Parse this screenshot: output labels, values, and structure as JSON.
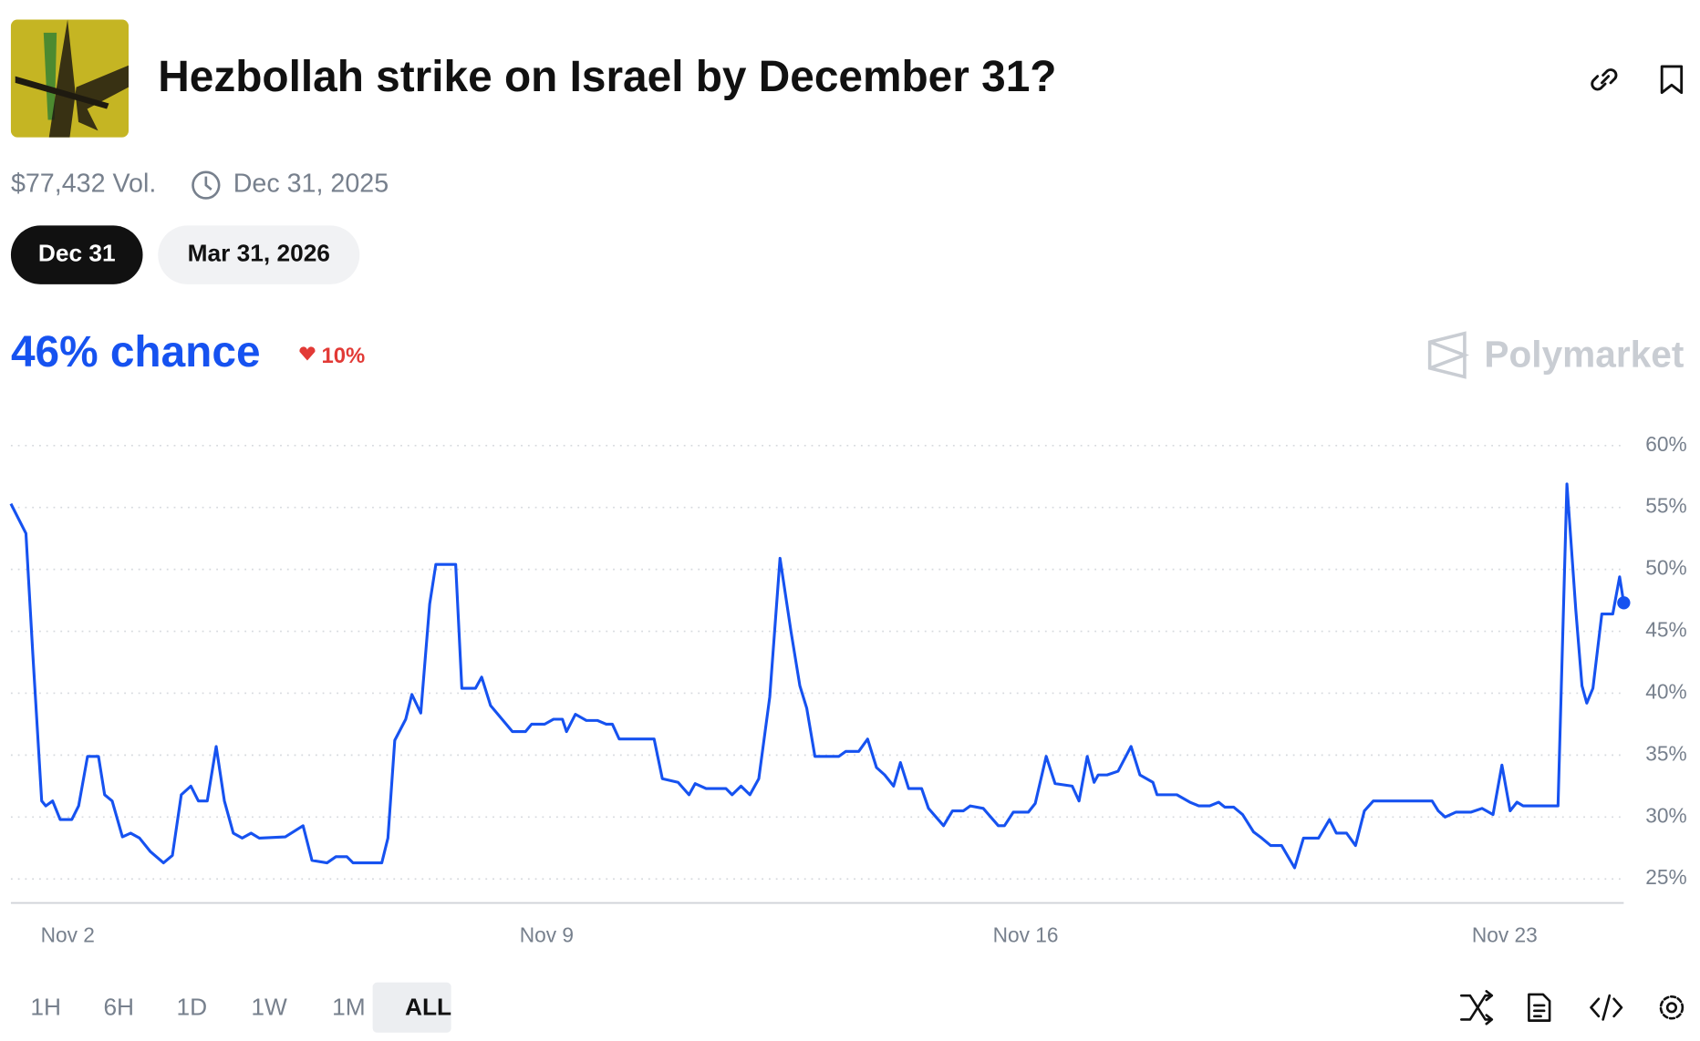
{
  "header": {
    "title": "Hezbollah strike on Israel by December 31?",
    "volume": "$77,432 Vol.",
    "end_date": "Dec 31, 2025"
  },
  "date_options": [
    "Dec 31",
    "Mar 31, 2026"
  ],
  "headline": {
    "chance": "46% chance",
    "change": "10%"
  },
  "brand": "Polymarket",
  "ranges": [
    "1H",
    "6H",
    "1D",
    "1W",
    "1M",
    "ALL"
  ],
  "chart_data": {
    "type": "line",
    "x": [
      1.17,
      1.39,
      1.49,
      1.62,
      1.68,
      1.78,
      1.89,
      2.06,
      2.16,
      2.29,
      2.45,
      2.54,
      2.65,
      2.8,
      2.92,
      3.05,
      3.21,
      3.4,
      3.53,
      3.66,
      3.8,
      3.91,
      4.04,
      4.17,
      4.29,
      4.42,
      4.55,
      4.68,
      4.8,
      5.18,
      5.44,
      5.57,
      5.79,
      5.92,
      6.08,
      6.17,
      6.59,
      6.68,
      6.78,
      6.94,
      7.03,
      7.16,
      7.29,
      7.38,
      7.67,
      7.76,
      7.96,
      8.05,
      8.18,
      8.5,
      8.69,
      8.78,
      8.97,
      9.1,
      9.23,
      9.29,
      9.42,
      9.58,
      9.74,
      9.87,
      9.96,
      10.06,
      10.57,
      10.69,
      10.92,
      11.08,
      11.17,
      11.33,
      11.62,
      11.71,
      11.84,
      11.97,
      12.1,
      12.26,
      12.41,
      12.57,
      12.7,
      12.8,
      12.92,
      13.27,
      13.37,
      13.56,
      13.69,
      13.82,
      13.94,
      14.07,
      14.17,
      14.29,
      14.48,
      14.58,
      14.8,
      14.93,
      15.09,
      15.19,
      15.38,
      15.6,
      15.69,
      15.82,
      16.04,
      16.14,
      16.3,
      16.43,
      16.68,
      16.78,
      16.9,
      17.0,
      17.06,
      17.19,
      17.35,
      17.54,
      17.67,
      17.86,
      17.92,
      18.21,
      18.4,
      18.53,
      18.69,
      18.82,
      18.91,
      19.04,
      19.17,
      19.33,
      19.45,
      19.58,
      19.74,
      19.93,
      20.06,
      20.28,
      20.44,
      20.54,
      20.69,
      20.82,
      20.95,
      21.08,
      21.94,
      22.03,
      22.13,
      22.29,
      22.51,
      22.67,
      22.83,
      22.96,
      23.08,
      23.18,
      23.27,
      23.78,
      23.91,
      24.04,
      24.13,
      24.2,
      24.29,
      24.42,
      24.58,
      24.68,
      24.74
    ],
    "series": [
      {
        "color": "#1652f0",
        "values": [
          55.3,
          52.9,
          43.2,
          31.3,
          30.9,
          31.3,
          29.8,
          29.8,
          30.9,
          34.9,
          34.9,
          31.8,
          31.3,
          28.4,
          28.7,
          28.3,
          27.2,
          26.3,
          26.9,
          31.8,
          32.5,
          31.3,
          31.3,
          35.7,
          31.3,
          28.7,
          28.3,
          28.7,
          28.3,
          28.4,
          29.3,
          26.5,
          26.3,
          26.8,
          26.8,
          26.3,
          26.3,
          28.3,
          36.2,
          37.9,
          39.9,
          38.4,
          47.2,
          50.4,
          50.4,
          40.4,
          40.4,
          41.3,
          39.0,
          36.9,
          36.9,
          37.5,
          37.5,
          37.9,
          37.9,
          36.9,
          38.3,
          37.8,
          37.8,
          37.5,
          37.5,
          36.3,
          36.3,
          33.1,
          32.8,
          31.8,
          32.7,
          32.3,
          32.3,
          31.8,
          32.5,
          31.8,
          33.1,
          39.7,
          50.9,
          45.0,
          40.6,
          38.8,
          34.9,
          34.9,
          35.3,
          35.3,
          36.3,
          34.0,
          33.4,
          32.5,
          34.4,
          32.3,
          32.3,
          30.7,
          29.3,
          30.5,
          30.5,
          30.9,
          30.7,
          29.3,
          29.3,
          30.4,
          30.4,
          31.1,
          34.9,
          32.7,
          32.5,
          31.3,
          34.9,
          32.8,
          33.4,
          33.4,
          33.7,
          35.7,
          33.4,
          32.8,
          31.8,
          31.8,
          31.2,
          30.9,
          30.9,
          31.2,
          30.8,
          30.8,
          30.2,
          28.8,
          28.3,
          27.7,
          27.7,
          25.9,
          28.3,
          28.3,
          29.8,
          28.7,
          28.7,
          27.7,
          30.5,
          31.3,
          31.3,
          30.5,
          30.0,
          30.4,
          30.4,
          30.7,
          30.2,
          34.2,
          30.5,
          31.2,
          30.9,
          30.9,
          56.9,
          46.7,
          40.6,
          39.2,
          40.4,
          46.4,
          46.4,
          49.4,
          47.3
        ]
      }
    ],
    "xlim": [
      1.17,
      24.74
    ],
    "ylim": [
      23,
      62
    ],
    "xticks": [
      {
        "value": 2,
        "label": "Nov 2"
      },
      {
        "value": 9,
        "label": "Nov 9"
      },
      {
        "value": 16,
        "label": "Nov 16"
      },
      {
        "value": 23,
        "label": "Nov 23"
      }
    ],
    "yticks": [
      {
        "value": 25,
        "label": "25%"
      },
      {
        "value": 30,
        "label": "30%"
      },
      {
        "value": 35,
        "label": "35%"
      },
      {
        "value": 40,
        "label": "40%"
      },
      {
        "value": 45,
        "label": "45%"
      },
      {
        "value": 50,
        "label": "50%"
      },
      {
        "value": 55,
        "label": "55%"
      },
      {
        "value": 60,
        "label": "60%"
      }
    ],
    "grid": true
  }
}
